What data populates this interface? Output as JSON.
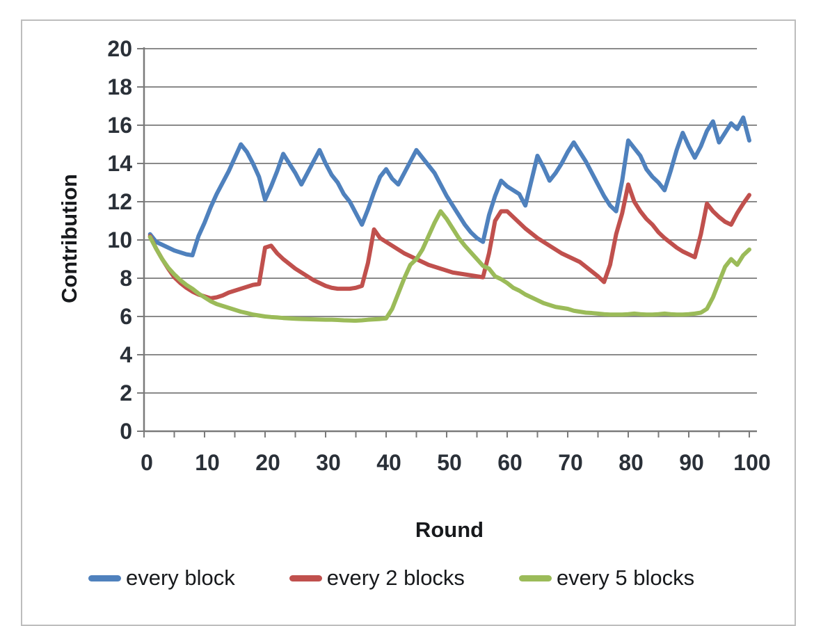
{
  "chart_data": {
    "type": "line",
    "title": "",
    "xlabel": "Round",
    "ylabel": "Contribution",
    "xlim": [
      0,
      100
    ],
    "ylim": [
      0,
      20
    ],
    "x_tick_labels": [
      0,
      10,
      20,
      30,
      40,
      50,
      60,
      70,
      80,
      90,
      100
    ],
    "x_minor_tick_step": 5,
    "y_tick_labels": [
      0,
      2,
      4,
      6,
      8,
      10,
      12,
      14,
      16,
      18,
      20
    ],
    "grid": "horizontal",
    "legend_position": "bottom",
    "x_start": 1,
    "x_step": 1,
    "series": [
      {
        "name": "every block",
        "color": "#4F81BD",
        "values": [
          10.3,
          9.9,
          9.75,
          9.6,
          9.45,
          9.35,
          9.25,
          9.2,
          10.2,
          10.9,
          11.7,
          12.4,
          13.0,
          13.6,
          14.3,
          15.0,
          14.6,
          14.0,
          13.3,
          12.1,
          12.8,
          13.6,
          14.5,
          14.0,
          13.5,
          12.9,
          13.5,
          14.1,
          14.7,
          14.0,
          13.4,
          13.0,
          12.4,
          12.0,
          11.4,
          10.8,
          11.6,
          12.5,
          13.3,
          13.7,
          13.2,
          12.9,
          13.5,
          14.1,
          14.7,
          14.3,
          13.9,
          13.5,
          12.9,
          12.3,
          11.8,
          11.3,
          10.8,
          10.4,
          10.1,
          9.9,
          11.3,
          12.3,
          13.1,
          12.8,
          12.6,
          12.4,
          11.8,
          13.1,
          14.4,
          13.8,
          13.1,
          13.5,
          14.0,
          14.6,
          15.1,
          14.6,
          14.1,
          13.5,
          12.9,
          12.3,
          11.8,
          11.5,
          13.1,
          15.2,
          14.8,
          14.4,
          13.7,
          13.3,
          13.0,
          12.6,
          13.6,
          14.7,
          15.6,
          14.9,
          14.3,
          14.9,
          15.7,
          16.2,
          15.1,
          15.6,
          16.1,
          15.8,
          16.4,
          15.2
        ]
      },
      {
        "name": "every 2 blocks",
        "color": "#C0504D",
        "values": [
          10.2,
          9.55,
          9.0,
          8.5,
          8.05,
          7.75,
          7.5,
          7.3,
          7.15,
          7.05,
          6.95,
          7.0,
          7.1,
          7.25,
          7.35,
          7.45,
          7.55,
          7.65,
          7.7,
          9.6,
          9.7,
          9.3,
          9.0,
          8.75,
          8.5,
          8.3,
          8.1,
          7.9,
          7.75,
          7.6,
          7.5,
          7.45,
          7.45,
          7.45,
          7.5,
          7.6,
          8.8,
          10.55,
          10.1,
          9.9,
          9.7,
          9.5,
          9.3,
          9.15,
          9.0,
          8.85,
          8.7,
          8.6,
          8.5,
          8.4,
          8.3,
          8.25,
          8.2,
          8.15,
          8.1,
          8.05,
          9.3,
          11.0,
          11.5,
          11.5,
          11.2,
          10.9,
          10.6,
          10.35,
          10.1,
          9.9,
          9.7,
          9.5,
          9.3,
          9.15,
          9.0,
          8.85,
          8.6,
          8.35,
          8.1,
          7.8,
          8.7,
          10.3,
          11.4,
          12.9,
          12.0,
          11.5,
          11.1,
          10.8,
          10.4,
          10.1,
          9.85,
          9.6,
          9.4,
          9.25,
          9.1,
          10.3,
          11.9,
          11.5,
          11.2,
          10.95,
          10.8,
          11.4,
          11.9,
          12.35
        ]
      },
      {
        "name": "every 5 blocks",
        "color": "#9BBB59",
        "values": [
          10.15,
          9.55,
          9.0,
          8.55,
          8.2,
          7.9,
          7.65,
          7.45,
          7.2,
          7.0,
          6.8,
          6.65,
          6.55,
          6.45,
          6.35,
          6.25,
          6.18,
          6.1,
          6.05,
          6.0,
          5.97,
          5.95,
          5.92,
          5.9,
          5.88,
          5.87,
          5.86,
          5.85,
          5.84,
          5.83,
          5.83,
          5.82,
          5.8,
          5.79,
          5.78,
          5.8,
          5.83,
          5.85,
          5.87,
          5.9,
          6.4,
          7.2,
          8.0,
          8.7,
          9.0,
          9.5,
          10.2,
          10.9,
          11.5,
          11.1,
          10.6,
          10.1,
          9.7,
          9.35,
          9.0,
          8.65,
          8.5,
          8.1,
          7.95,
          7.75,
          7.5,
          7.35,
          7.15,
          7.0,
          6.85,
          6.7,
          6.6,
          6.5,
          6.45,
          6.4,
          6.3,
          6.25,
          6.2,
          6.18,
          6.15,
          6.12,
          6.1,
          6.1,
          6.1,
          6.12,
          6.15,
          6.12,
          6.1,
          6.1,
          6.12,
          6.15,
          6.12,
          6.1,
          6.1,
          6.12,
          6.15,
          6.2,
          6.4,
          7.0,
          7.8,
          8.6,
          9.0,
          8.7,
          9.2,
          9.5
        ]
      }
    ]
  },
  "style": {
    "gridline_color": "#8a8a8a",
    "axis_color": "#7a7a7a",
    "line_width": 6
  }
}
